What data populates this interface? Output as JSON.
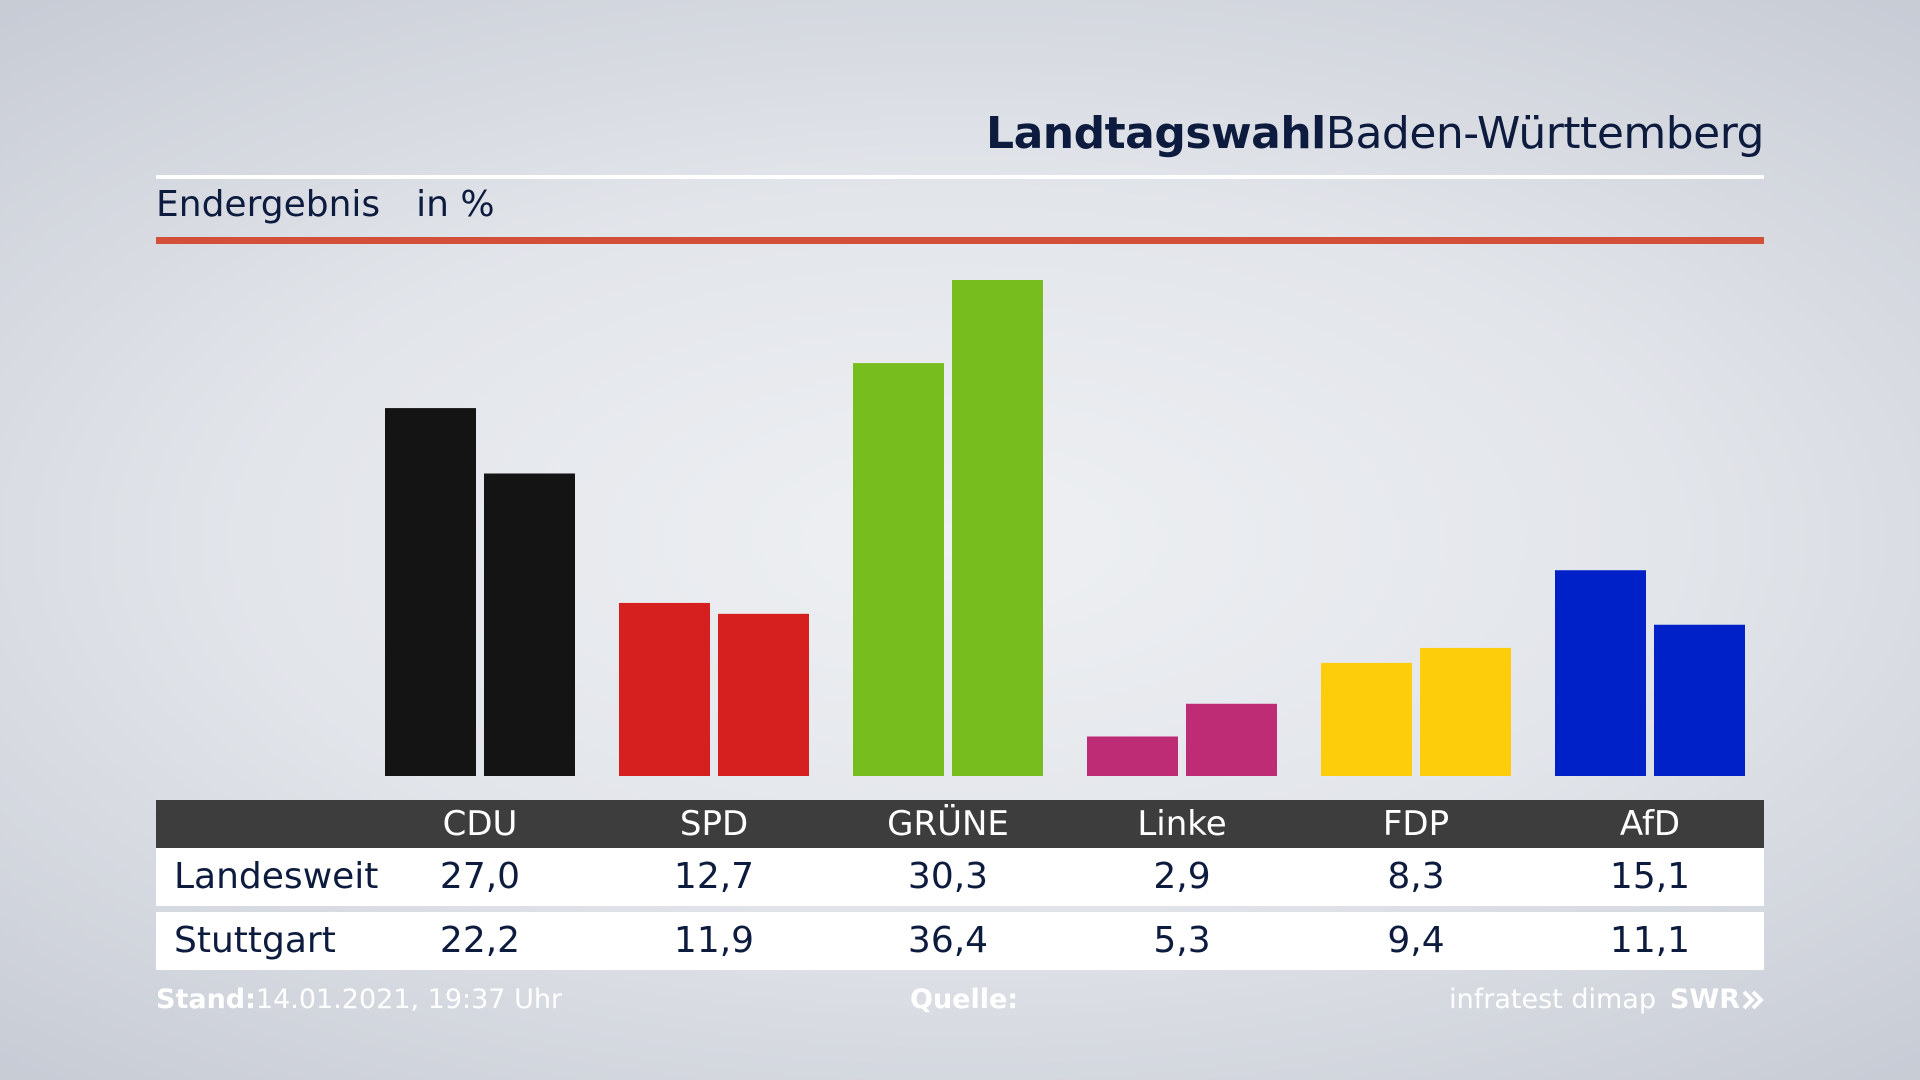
{
  "header": {
    "title_bold": "Landtagswahl",
    "title_rest": "Baden-Württemberg"
  },
  "subtitle": {
    "label": "Endergebnis",
    "unit": "in %"
  },
  "table": {
    "header_blank": "",
    "rows": [
      {
        "label": "Landesweit"
      },
      {
        "label": "Stuttgart"
      }
    ]
  },
  "chart_data": {
    "type": "bar",
    "title": "",
    "categories": [
      "CDU",
      "SPD",
      "GRÜNE",
      "Linke",
      "FDP",
      "AfD"
    ],
    "colors": [
      "#141414",
      "#d61f1f",
      "#78bd1e",
      "#be2c75",
      "#fdcd0b",
      "#0021c7"
    ],
    "series": [
      {
        "name": "Landesweit",
        "values": [
          "27,0",
          "12,7",
          "30,3",
          "2,9",
          "8,3",
          "15,1"
        ],
        "numeric": [
          27.0,
          12.7,
          30.3,
          2.9,
          8.3,
          15.1
        ]
      },
      {
        "name": "Stuttgart",
        "values": [
          "22,2",
          "11,9",
          "36,4",
          "5,3",
          "9,4",
          "11,1"
        ],
        "numeric": [
          22.2,
          11.9,
          36.4,
          5.3,
          9.4,
          11.1
        ]
      }
    ],
    "ylim": [
      0,
      36.4
    ],
    "grid": false,
    "legend": "table-below"
  },
  "footer": {
    "stand_label": "Stand:",
    "stand_value": "14.01.2021, 19:37 Uhr",
    "quelle_label": "Quelle:",
    "source": "infratest dimap",
    "brand": "SWR"
  }
}
